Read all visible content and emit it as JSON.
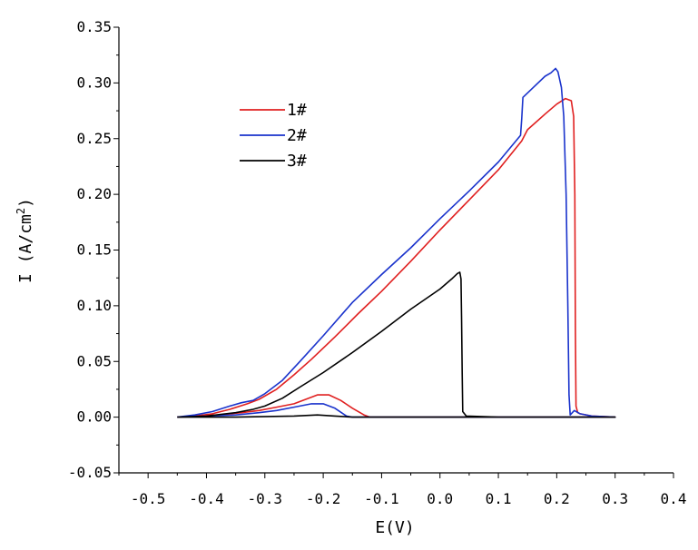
{
  "chart_data": {
    "type": "line",
    "title": "",
    "xlabel": "E(V)",
    "ylabel_main": "I  (A/cm",
    "ylabel_sup": "2",
    "ylabel_close": ")",
    "xlim": [
      -0.55,
      0.4
    ],
    "ylim": [
      -0.05,
      0.35
    ],
    "x_ticks": [
      -0.5,
      -0.4,
      -0.3,
      -0.2,
      -0.1,
      0.0,
      0.1,
      0.2,
      0.3,
      0.4
    ],
    "x_tick_labels": [
      "-0.5",
      "-0.4",
      "-0.3",
      "-0.2",
      "-0.1",
      "0.0",
      "0.1",
      "0.2",
      "0.3",
      "0.4"
    ],
    "y_ticks": [
      -0.05,
      0.0,
      0.05,
      0.1,
      0.15,
      0.2,
      0.25,
      0.3,
      0.35
    ],
    "y_tick_labels": [
      "-0.05",
      "0.00",
      "0.05",
      "0.10",
      "0.15",
      "0.20",
      "0.25",
      "0.30",
      "0.35"
    ],
    "legend_position": "upper-left",
    "series": [
      {
        "name": "1#",
        "color": "#e02020",
        "points": [
          [
            -0.45,
            0.0
          ],
          [
            -0.42,
            0.001
          ],
          [
            -0.39,
            0.003
          ],
          [
            -0.36,
            0.007
          ],
          [
            -0.33,
            0.012
          ],
          [
            -0.31,
            0.016
          ],
          [
            -0.28,
            0.025
          ],
          [
            -0.25,
            0.038
          ],
          [
            -0.22,
            0.052
          ],
          [
            -0.18,
            0.072
          ],
          [
            -0.14,
            0.093
          ],
          [
            -0.1,
            0.113
          ],
          [
            -0.05,
            0.14
          ],
          [
            0.0,
            0.168
          ],
          [
            0.05,
            0.195
          ],
          [
            0.1,
            0.222
          ],
          [
            0.14,
            0.248
          ],
          [
            0.15,
            0.258
          ],
          [
            0.18,
            0.272
          ],
          [
            0.2,
            0.281
          ],
          [
            0.215,
            0.286
          ],
          [
            0.225,
            0.284
          ],
          [
            0.229,
            0.27
          ],
          [
            0.231,
            0.2
          ],
          [
            0.232,
            0.08
          ],
          [
            0.233,
            0.01
          ],
          [
            0.236,
            0.004
          ],
          [
            0.24,
            0.003
          ],
          [
            0.26,
            0.001
          ],
          [
            0.3,
            0.0
          ],
          [
            0.26,
            0.0
          ],
          [
            0.2,
            0.0
          ],
          [
            0.1,
            0.0
          ],
          [
            0.0,
            0.0
          ],
          [
            -0.12,
            0.0
          ],
          [
            -0.13,
            0.002
          ],
          [
            -0.15,
            0.008
          ],
          [
            -0.17,
            0.015
          ],
          [
            -0.19,
            0.02
          ],
          [
            -0.21,
            0.02
          ],
          [
            -0.23,
            0.016
          ],
          [
            -0.25,
            0.012
          ],
          [
            -0.28,
            0.009
          ],
          [
            -0.31,
            0.006
          ],
          [
            -0.34,
            0.004
          ],
          [
            -0.38,
            0.002
          ],
          [
            -0.42,
            0.001
          ],
          [
            -0.45,
            0.0
          ]
        ]
      },
      {
        "name": "2#",
        "color": "#1a33cc",
        "points": [
          [
            -0.45,
            0.0
          ],
          [
            -0.42,
            0.002
          ],
          [
            -0.39,
            0.005
          ],
          [
            -0.36,
            0.01
          ],
          [
            -0.34,
            0.013
          ],
          [
            -0.32,
            0.015
          ],
          [
            -0.3,
            0.021
          ],
          [
            -0.27,
            0.033
          ],
          [
            -0.24,
            0.05
          ],
          [
            -0.2,
            0.073
          ],
          [
            -0.15,
            0.103
          ],
          [
            -0.1,
            0.128
          ],
          [
            -0.05,
            0.152
          ],
          [
            0.0,
            0.178
          ],
          [
            0.05,
            0.203
          ],
          [
            0.1,
            0.229
          ],
          [
            0.138,
            0.253
          ],
          [
            0.14,
            0.268
          ],
          [
            0.142,
            0.287
          ],
          [
            0.16,
            0.296
          ],
          [
            0.18,
            0.306
          ],
          [
            0.19,
            0.309
          ],
          [
            0.198,
            0.313
          ],
          [
            0.202,
            0.31
          ],
          [
            0.208,
            0.296
          ],
          [
            0.212,
            0.27
          ],
          [
            0.216,
            0.2
          ],
          [
            0.219,
            0.1
          ],
          [
            0.221,
            0.02
          ],
          [
            0.223,
            0.002
          ],
          [
            0.23,
            0.006
          ],
          [
            0.24,
            0.003
          ],
          [
            0.26,
            0.001
          ],
          [
            0.3,
            0.0
          ],
          [
            0.26,
            0.0
          ],
          [
            0.2,
            0.0
          ],
          [
            0.1,
            0.0
          ],
          [
            0.0,
            0.0
          ],
          [
            -0.15,
            0.0
          ],
          [
            -0.16,
            0.001
          ],
          [
            -0.18,
            0.008
          ],
          [
            -0.2,
            0.012
          ],
          [
            -0.22,
            0.012
          ],
          [
            -0.25,
            0.009
          ],
          [
            -0.28,
            0.006
          ],
          [
            -0.31,
            0.004
          ],
          [
            -0.35,
            0.002
          ],
          [
            -0.4,
            0.001
          ],
          [
            -0.45,
            0.0
          ]
        ]
      },
      {
        "name": "3#",
        "color": "#000000",
        "points": [
          [
            -0.45,
            0.0
          ],
          [
            -0.4,
            0.001
          ],
          [
            -0.35,
            0.004
          ],
          [
            -0.32,
            0.007
          ],
          [
            -0.3,
            0.01
          ],
          [
            -0.27,
            0.017
          ],
          [
            -0.24,
            0.027
          ],
          [
            -0.2,
            0.04
          ],
          [
            -0.15,
            0.058
          ],
          [
            -0.1,
            0.077
          ],
          [
            -0.05,
            0.097
          ],
          [
            0.0,
            0.115
          ],
          [
            0.02,
            0.124
          ],
          [
            0.03,
            0.129
          ],
          [
            0.034,
            0.13
          ],
          [
            0.036,
            0.124
          ],
          [
            0.037,
            0.09
          ],
          [
            0.038,
            0.04
          ],
          [
            0.039,
            0.005
          ],
          [
            0.045,
            0.001
          ],
          [
            0.1,
            0.0
          ],
          [
            0.2,
            0.0
          ],
          [
            0.3,
            0.0
          ],
          [
            0.2,
            0.0
          ],
          [
            0.0,
            0.0
          ],
          [
            -0.15,
            0.0
          ],
          [
            -0.18,
            0.001
          ],
          [
            -0.21,
            0.002
          ],
          [
            -0.25,
            0.001
          ],
          [
            -0.35,
            0.0
          ],
          [
            -0.45,
            0.0
          ]
        ]
      }
    ]
  }
}
